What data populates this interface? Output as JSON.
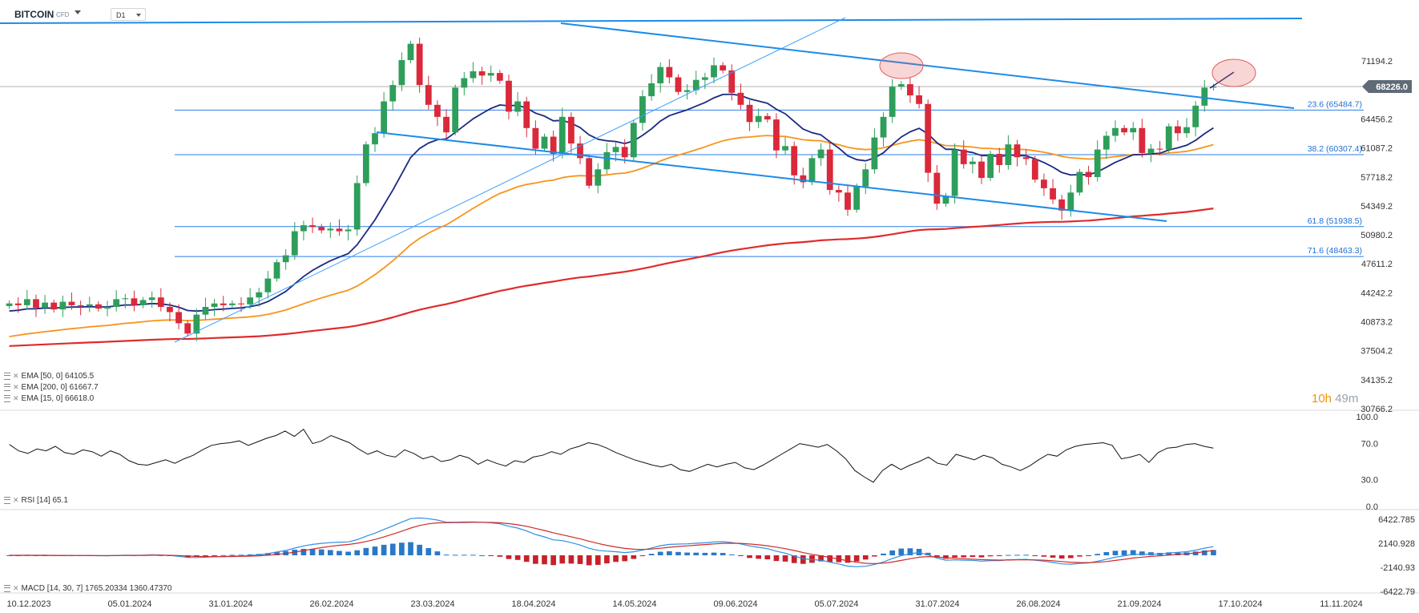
{
  "header": {
    "symbol": "BITCOIN",
    "instrument_type": "CFD",
    "timeframe": "D1"
  },
  "price_panel": {
    "y_ticks": [
      "71194.2",
      "64456.2",
      "61087.2",
      "57718.2",
      "54349.2",
      "50980.2",
      "47611.2",
      "44242.2",
      "40873.2",
      "37504.2",
      "34135.2",
      "30766.2"
    ],
    "current_price": "68226.0",
    "current_price_value": 68226,
    "ylim": [
      30766.2,
      74563.2
    ],
    "fib_levels": [
      {
        "label": "23.6 (65484.7)",
        "value": 65484.7
      },
      {
        "label": "38.2 (60307.4)",
        "value": 60307.4
      },
      {
        "label": "61.8 (51938.5)",
        "value": 51938.5
      },
      {
        "label": "71.6 (48463.3)",
        "value": 48463.3
      }
    ],
    "legend": [
      {
        "text": "EMA [50, 0] 64105.5",
        "color": "#f7941d"
      },
      {
        "text": "EMA [200, 0] 61667.7",
        "color": "#e02b2b"
      },
      {
        "text": "EMA [15, 0] 66618.0",
        "color": "#1b2a80"
      }
    ],
    "timer": {
      "hours": "10h",
      "minutes": "49m"
    }
  },
  "rsi_panel": {
    "y_ticks": [
      "100.0",
      "70.0",
      "30.0",
      "0.0"
    ],
    "legend": "RSI [14] 65.1",
    "ylim": [
      0,
      100
    ],
    "values": [
      69,
      62,
      59,
      64,
      62,
      67,
      60,
      58,
      63,
      61,
      56,
      62,
      58,
      51,
      47,
      46,
      49,
      52,
      48,
      53,
      57,
      63,
      68,
      70,
      71,
      73,
      68,
      72,
      76,
      79,
      84,
      78,
      86,
      70,
      73,
      79,
      75,
      71,
      64,
      58,
      62,
      57,
      55,
      63,
      59,
      53,
      56,
      50,
      52,
      57,
      54,
      47,
      52,
      48,
      45,
      51,
      49,
      55,
      57,
      61,
      58,
      64,
      67,
      71,
      69,
      65,
      60,
      56,
      52,
      49,
      46,
      44,
      47,
      41,
      39,
      43,
      47,
      44,
      47,
      49,
      43,
      41,
      46,
      52,
      58,
      64,
      70,
      68,
      66,
      69,
      62,
      53,
      40,
      33,
      27,
      40,
      47,
      41,
      46,
      50,
      55,
      48,
      46,
      58,
      55,
      52,
      57,
      54,
      47,
      44,
      40,
      45,
      52,
      58,
      56,
      63,
      67,
      69,
      70,
      71,
      68,
      53,
      55,
      58,
      49,
      60,
      65,
      66,
      69,
      70,
      67,
      65
    ]
  },
  "macd_panel": {
    "y_ticks": [
      "6422.785",
      "2140.928",
      "-2140.93",
      "-6422.79"
    ],
    "legend": "MACD [14, 30, 7] 1765.20334 1360.47370",
    "ylim": [
      -6422.79,
      6422.785
    ]
  },
  "x_axis": {
    "labels": [
      "10.12.2023",
      "05.01.2024",
      "31.01.2024",
      "26.02.2024",
      "23.03.2024",
      "18.04.2024",
      "14.05.2024",
      "09.06.2024",
      "05.07.2024",
      "31.07.2024",
      "26.08.2024",
      "21.09.2024",
      "17.10.2024",
      "11.11.2024"
    ]
  },
  "chart_data": {
    "type": "candlestick",
    "instrument": "BITCOIN",
    "timeframe": "D1",
    "x_labels": [
      "10.12.2023",
      "05.01.2024",
      "31.01.2024",
      "26.02.2024",
      "23.03.2024",
      "18.04.2024",
      "14.05.2024",
      "09.06.2024",
      "05.07.2024",
      "31.07.2024",
      "26.08.2024",
      "21.09.2024",
      "17.10.2024",
      "11.11.2024"
    ],
    "closes_approx": [
      43000,
      42800,
      43500,
      42500,
      43100,
      42300,
      43200,
      42800,
      42700,
      42900,
      42400,
      42600,
      43500,
      43600,
      42800,
      43400,
      43700,
      42600,
      42000,
      40700,
      39500,
      41700,
      42600,
      43000,
      42800,
      43000,
      42900,
      43700,
      44300,
      45900,
      47800,
      48600,
      51400,
      52100,
      51900,
      51500,
      51700,
      51400,
      51600,
      57000,
      61500,
      62800,
      66500,
      68400,
      71300,
      73200,
      68400,
      66100,
      64700,
      62900,
      68100,
      69200,
      70000,
      69500,
      69800,
      68900,
      65300,
      66500,
      63400,
      61000,
      62400,
      60400,
      64700,
      61600,
      59900,
      56700,
      58600,
      60600,
      61200,
      60000,
      64000,
      67100,
      68600,
      70500,
      69300,
      67600,
      67800,
      69000,
      69300,
      70700,
      70100,
      67500,
      66100,
      64100,
      64800,
      64400,
      60800,
      61300,
      57900,
      57100,
      59900,
      60900,
      56200,
      55900,
      53900,
      56600,
      58600,
      62300,
      64700,
      68200,
      68500,
      67200,
      66200,
      58200,
      54600,
      55500,
      60900,
      59200,
      59500,
      57600,
      60400,
      59100,
      61500,
      60000,
      59800,
      57400,
      56400,
      55100,
      53800,
      55900,
      58300,
      57700,
      60900,
      62500,
      63400,
      62900,
      63400,
      60500,
      61000,
      60900,
      63600,
      62800,
      63500,
      66000,
      68100,
      68200
    ],
    "series": [
      {
        "name": "EMA [50, 0]",
        "last": 64105.5,
        "color": "#f7941d"
      },
      {
        "name": "EMA [200, 0]",
        "last": 61667.7,
        "color": "#e02b2b"
      },
      {
        "name": "EMA [15, 0]",
        "last": 66618.0,
        "color": "#1b2a80"
      }
    ],
    "horizontal_levels": [
      65484.7,
      60307.4,
      51938.5,
      48463.3
    ],
    "last_price": 68226.0,
    "ylim": [
      30766.2,
      74563.2
    ]
  }
}
